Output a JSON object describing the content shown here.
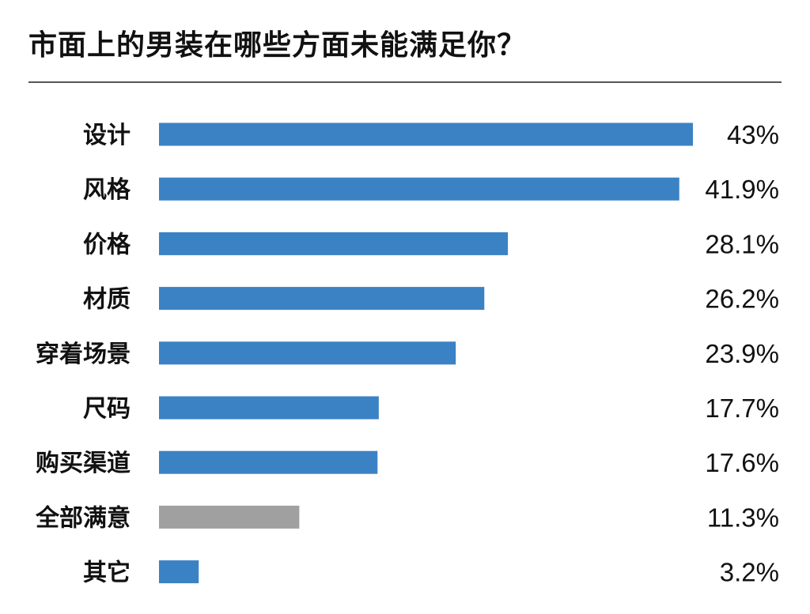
{
  "chart_data": {
    "type": "bar",
    "orientation": "horizontal",
    "title": "市面上的男装在哪些方面未能满足你？",
    "categories": [
      "设计",
      "风格",
      "价格",
      "材质",
      "穿着场景",
      "尺码",
      "购买渠道",
      "全部满意",
      "其它"
    ],
    "values": [
      43,
      41.9,
      28.1,
      26.2,
      23.9,
      17.7,
      17.6,
      11.3,
      3.2
    ],
    "value_labels": [
      "43%",
      "41.9%",
      "28.1%",
      "26.2%",
      "23.9%",
      "17.7%",
      "17.6%",
      "11.3%",
      "3.2%"
    ],
    "colors": [
      "#3b82c4",
      "#3b82c4",
      "#3b82c4",
      "#3b82c4",
      "#3b82c4",
      "#3b82c4",
      "#3b82c4",
      "#a0a0a0",
      "#3b82c4"
    ],
    "xlim": [
      0,
      43
    ],
    "grid": false,
    "legend": "none"
  }
}
